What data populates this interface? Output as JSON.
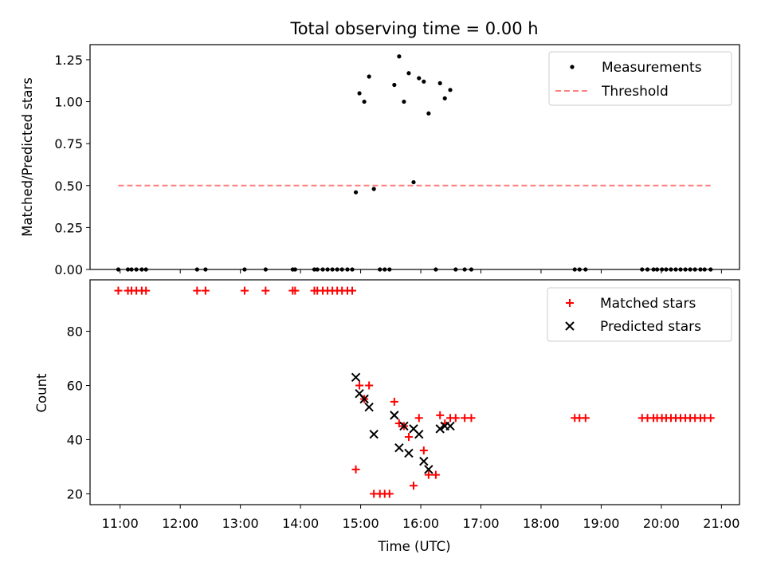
{
  "chart_data": [
    {
      "type": "scatter",
      "title": "Total observing time = 0.00 h",
      "xlabel": "",
      "ylabel": "Matched/Predicted stars",
      "xlim": [
        10.5,
        21.3
      ],
      "ylim": [
        0,
        1.34
      ],
      "yticks": [
        0.0,
        0.25,
        0.5,
        0.75,
        1.0,
        1.25
      ],
      "ytick_labels": [
        "0.00",
        "0.25",
        "0.50",
        "0.75",
        "1.00",
        "1.25"
      ],
      "legend_position": "top-right",
      "colors": {
        "measurements": "#000000",
        "threshold": "#ff7f7f"
      },
      "series": [
        {
          "name": "Measurements",
          "x": [
            10.97,
            11.13,
            11.19,
            11.27,
            11.36,
            11.43,
            12.28,
            12.42,
            13.07,
            13.42,
            13.87,
            13.91,
            14.23,
            14.28,
            14.37,
            14.45,
            14.53,
            14.61,
            14.69,
            14.78,
            14.86,
            14.92,
            14.98,
            15.06,
            15.14,
            15.22,
            15.32,
            15.4,
            15.48,
            15.56,
            15.64,
            15.72,
            15.8,
            15.88,
            15.97,
            16.05,
            16.13,
            16.25,
            16.32,
            16.4,
            16.49,
            16.58,
            16.73,
            16.84,
            18.56,
            18.64,
            18.74,
            19.68,
            19.77,
            19.87,
            19.93,
            20.01,
            20.08,
            20.16,
            20.24,
            20.32,
            20.4,
            20.48,
            20.56,
            20.65,
            20.72,
            20.82
          ],
          "y": [
            0,
            0,
            0,
            0,
            0,
            0,
            0,
            0,
            0,
            0,
            0,
            0,
            0,
            0,
            0,
            0,
            0,
            0,
            0,
            0,
            0,
            0.46,
            1.05,
            1.0,
            1.15,
            0.48,
            0,
            0,
            0,
            1.1,
            1.27,
            1.0,
            1.17,
            0.52,
            1.14,
            1.12,
            0.93,
            0,
            1.11,
            1.02,
            1.07,
            0,
            0,
            0,
            0,
            0,
            0,
            0,
            0,
            0,
            0,
            0,
            0,
            0,
            0,
            0,
            0,
            0,
            0,
            0,
            0,
            0
          ]
        },
        {
          "name": "Threshold",
          "x": [
            10.97,
            20.82
          ],
          "y": [
            0.5,
            0.5
          ]
        }
      ]
    },
    {
      "type": "scatter",
      "title": "",
      "xlabel": "Time (UTC)",
      "ylabel": "Count",
      "xlim": [
        10.5,
        21.3
      ],
      "ylim": [
        16,
        99
      ],
      "xticks": [
        11,
        12,
        13,
        14,
        15,
        16,
        17,
        18,
        19,
        20,
        21
      ],
      "xtick_labels": [
        "11:00",
        "12:00",
        "13:00",
        "14:00",
        "15:00",
        "16:00",
        "17:00",
        "18:00",
        "19:00",
        "20:00",
        "21:00"
      ],
      "yticks": [
        20,
        40,
        60,
        80
      ],
      "ytick_labels": [
        "20",
        "40",
        "60",
        "80"
      ],
      "legend_position": "top-right",
      "colors": {
        "matched": "#ff0000",
        "predicted": "#000000"
      },
      "series": [
        {
          "name": "Matched stars",
          "x": [
            10.97,
            11.13,
            11.19,
            11.27,
            11.36,
            11.43,
            12.28,
            12.42,
            13.07,
            13.42,
            13.87,
            13.91,
            14.23,
            14.28,
            14.37,
            14.45,
            14.53,
            14.61,
            14.69,
            14.78,
            14.86,
            14.92,
            14.98,
            15.06,
            15.14,
            15.22,
            15.32,
            15.4,
            15.48,
            15.56,
            15.64,
            15.72,
            15.8,
            15.88,
            15.97,
            16.05,
            16.13,
            16.25,
            16.32,
            16.4,
            16.49,
            16.58,
            16.73,
            16.84,
            18.56,
            18.64,
            18.74,
            19.68,
            19.77,
            19.87,
            19.93,
            20.01,
            20.08,
            20.16,
            20.24,
            20.32,
            20.4,
            20.48,
            20.56,
            20.65,
            20.72,
            20.82
          ],
          "y": [
            95,
            95,
            95,
            95,
            95,
            95,
            95,
            95,
            95,
            95,
            95,
            95,
            95,
            95,
            95,
            95,
            95,
            95,
            95,
            95,
            95,
            29,
            60,
            55,
            60,
            20,
            20,
            20,
            20,
            54,
            46,
            45,
            41,
            23,
            48,
            36,
            27,
            27,
            49,
            46,
            48,
            48,
            48,
            48,
            48,
            48,
            48,
            48,
            48,
            48,
            48,
            48,
            48,
            48,
            48,
            48,
            48,
            48,
            48,
            48,
            48,
            48
          ]
        },
        {
          "name": "Predicted stars",
          "x": [
            14.92,
            14.98,
            15.06,
            15.14,
            15.22,
            15.56,
            15.64,
            15.72,
            15.8,
            15.88,
            15.97,
            16.05,
            16.13,
            16.32,
            16.4,
            16.49
          ],
          "y": [
            63,
            57,
            55,
            52,
            42,
            49,
            37,
            45,
            35,
            44,
            42,
            32,
            29,
            44,
            45,
            45
          ]
        }
      ]
    }
  ]
}
